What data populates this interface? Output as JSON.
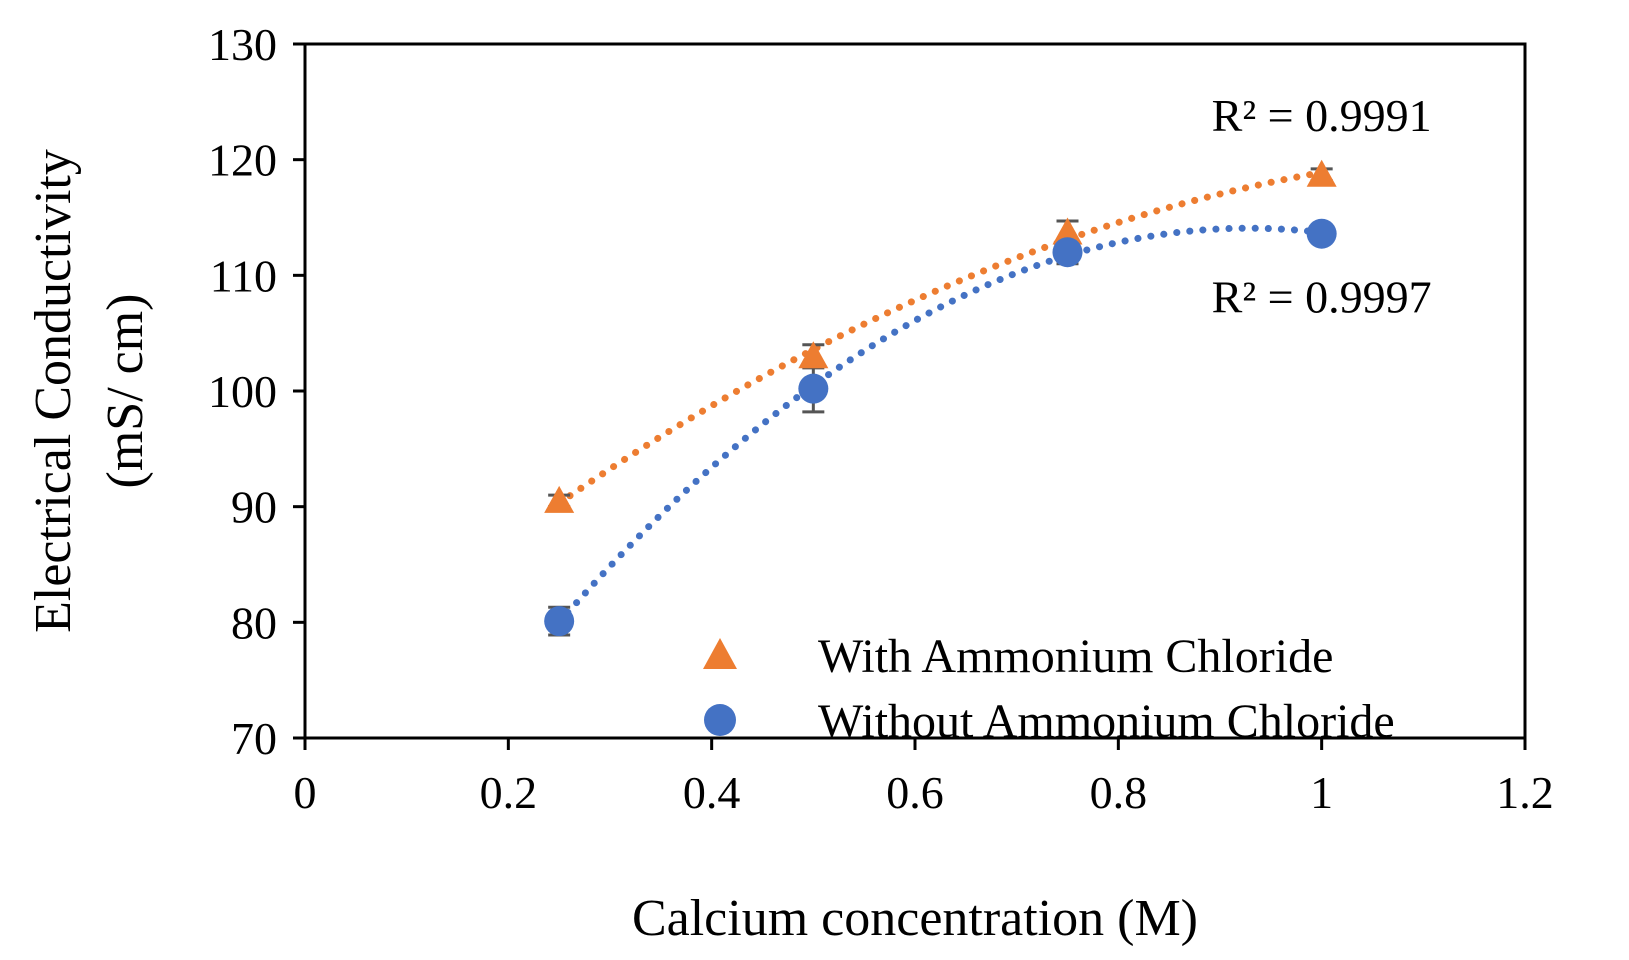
{
  "chart_data": {
    "type": "scatter",
    "title": "",
    "xlabel": "Calcium concentration (M)",
    "ylabel_line1": "Electrical Conductivity",
    "ylabel_line2": "(mS/ cm)",
    "xlim": [
      0,
      1.2
    ],
    "ylim": [
      70,
      130
    ],
    "xticks": [
      0,
      0.2,
      0.4,
      0.6,
      0.8,
      1,
      1.2
    ],
    "xtick_labels": [
      "0",
      "0.2",
      "0.4",
      "0.6",
      "0.8",
      "1",
      "1.2"
    ],
    "yticks": [
      70,
      80,
      90,
      100,
      110,
      120,
      130
    ],
    "ytick_labels": [
      "70",
      "80",
      "90",
      "100",
      "110",
      "120",
      "130"
    ],
    "grid": false,
    "legend_position": "bottom-right",
    "series": [
      {
        "name": "With Ammonium Chloride",
        "marker": "triangle",
        "color": "#ED7D31",
        "x": [
          0.25,
          0.5,
          0.75,
          1.0
        ],
        "y": [
          90.5,
          103.0,
          113.7,
          118.7
        ],
        "error": [
          0.5,
          1.0,
          1.0,
          0.5
        ],
        "trendline": {
          "type": "polynomial",
          "style": "dotted",
          "r2_label": "R² = 0.9991"
        }
      },
      {
        "name": "Without Ammonium Chloride",
        "marker": "circle",
        "color": "#4472C4",
        "x": [
          0.25,
          0.5,
          0.75,
          1.0
        ],
        "y": [
          80.1,
          100.2,
          112.0,
          113.6
        ],
        "error": [
          1.2,
          2.0,
          1.0,
          0.3
        ],
        "trendline": {
          "type": "polynomial",
          "style": "dotted",
          "r2_label": "R² = 0.9997"
        }
      }
    ]
  }
}
